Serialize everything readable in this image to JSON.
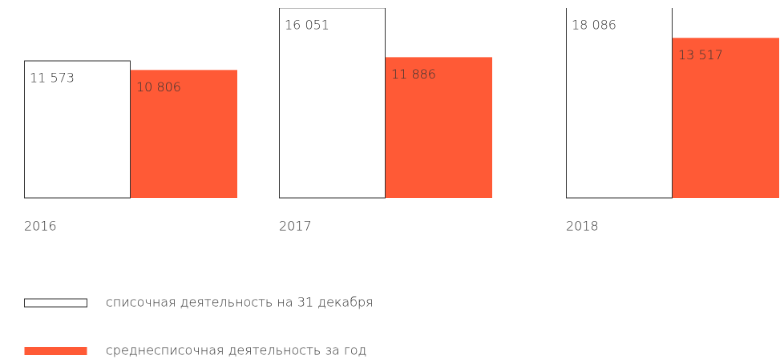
{
  "chart_data": {
    "type": "bar",
    "categories": [
      "2016",
      "2017",
      "2018"
    ],
    "series": [
      {
        "name": "списочная деятельность на 31 декабря",
        "color": "#ffffff",
        "values": [
          11573,
          16051,
          18086
        ],
        "value_labels": [
          "11 573",
          "16 051",
          "18 086"
        ]
      },
      {
        "name": "среднесписочная деятельность за год",
        "color": "#ff5a36",
        "values": [
          10806,
          11886,
          13517
        ],
        "value_labels": [
          "10 806",
          "11 886",
          "13 517"
        ]
      }
    ]
  }
}
